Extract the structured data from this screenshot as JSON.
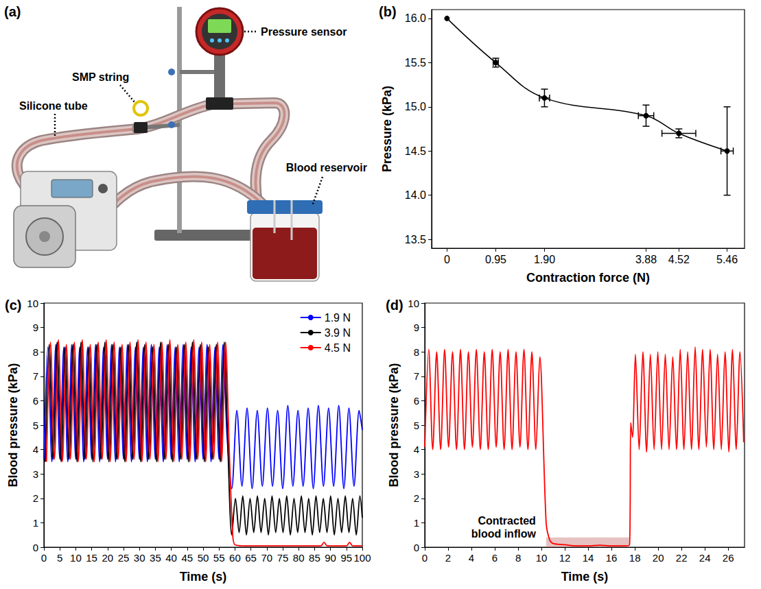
{
  "diagram": {
    "panel": "(a)",
    "labels": {
      "smp_string": "SMP string",
      "pressure_sensor": "Pressure sensor",
      "silicone_tube": "Silicone tube",
      "blood_reservoir": "Blood reservoir"
    }
  },
  "chart_data": [
    {
      "panel": "(b)",
      "type": "line",
      "x_label": "Contraction force (N)",
      "y_label": "Pressure (kPa)",
      "x": [
        0,
        0.95,
        1.9,
        3.88,
        4.52,
        5.46
      ],
      "values": [
        16.0,
        15.5,
        15.1,
        14.9,
        14.7,
        14.5
      ],
      "x_error": [
        0,
        0.05,
        0.1,
        0.15,
        0.33,
        0.12
      ],
      "y_error": [
        0,
        0.05,
        0.1,
        0.12,
        0.05,
        0.5
      ],
      "color": "#000000",
      "marker": "circle",
      "line_style": "solid",
      "xlim": [
        -0.3,
        5.8
      ],
      "xticks": [
        0,
        0.95,
        {
          "value": 1.9,
          "label": "1.90"
        },
        3.88,
        4.52,
        5.46
      ],
      "ylim": [
        13.4,
        16.1
      ],
      "yticks": [
        13.5,
        {
          "value": 14,
          "label": "14.0"
        },
        14.5,
        {
          "value": 15,
          "label": "15.0"
        },
        15.5,
        {
          "value": 16,
          "label": "16.0"
        }
      ],
      "grid": false
    },
    {
      "panel": "(c)",
      "type": "line",
      "x_label": "Time (s)",
      "y_label": "Blood pressure (kPa)",
      "xlim": [
        0,
        100
      ],
      "xticks": [
        0,
        5,
        10,
        15,
        20,
        25,
        30,
        35,
        40,
        45,
        50,
        55,
        60,
        65,
        70,
        75,
        80,
        85,
        90,
        95,
        100
      ],
      "ylim": [
        0,
        10
      ],
      "yticks": [
        0,
        1,
        2,
        3,
        4,
        5,
        6,
        7,
        8,
        9,
        10
      ],
      "grid": false,
      "legend": "upper right",
      "series": [
        {
          "name": "1.9 N",
          "color": "#0000ff",
          "line_style": "solid",
          "x": [
            0,
            1.25,
            2.5,
            3.75,
            5,
            6.25,
            7.5,
            8.75,
            10,
            11.25,
            12.5,
            13.75,
            15,
            16.25,
            17.5,
            18.75,
            20,
            21.25,
            22.5,
            23.75,
            25,
            26.25,
            27.5,
            28.75,
            30,
            31.25,
            32.5,
            33.75,
            35,
            36.25,
            37.5,
            38.75,
            40,
            41.25,
            42.5,
            43.75,
            45,
            46.25,
            47.5,
            48.75,
            50,
            51.25,
            52.5,
            53.75,
            55,
            56.25,
            57.5,
            59,
            60.6,
            62.2,
            63.8,
            65.4,
            67,
            68.6,
            70.2,
            71.8,
            73.4,
            75,
            76.6,
            78.2,
            79.8,
            81.4,
            83,
            84.6,
            86.2,
            87.8,
            89.4,
            91,
            92.6,
            94.2,
            95.8,
            97.4,
            99,
            100
          ],
          "values": [
            3.6,
            8.2,
            3.5,
            8.3,
            3.6,
            8.2,
            3.5,
            8.3,
            3.6,
            8.2,
            3.5,
            8.2,
            3.6,
            8.3,
            3.5,
            8.2,
            3.6,
            8.3,
            3.5,
            8.2,
            3.6,
            8.3,
            3.5,
            8.2,
            3.6,
            8.2,
            3.5,
            8.3,
            3.6,
            8.2,
            3.5,
            8.3,
            3.6,
            8.2,
            3.5,
            8.3,
            3.6,
            8.2,
            3.5,
            8.2,
            3.6,
            8.3,
            3.5,
            8.2,
            3.6,
            8.3,
            4.6,
            2.4,
            5.6,
            2.5,
            5.7,
            2.4,
            5.6,
            2.5,
            5.7,
            2.5,
            5.6,
            2.4,
            5.8,
            2.5,
            5.6,
            2.5,
            5.7,
            2.4,
            5.8,
            2.5,
            5.7,
            2.5,
            5.8,
            2.4,
            5.7,
            2.5,
            5.6,
            4.8
          ]
        },
        {
          "name": "3.9 N",
          "color": "#000000",
          "line_style": "solid",
          "x": [
            0.4,
            1.65,
            2.9,
            4.15,
            5.4,
            6.65,
            7.9,
            9.15,
            10.4,
            11.65,
            12.9,
            14.15,
            15.4,
            16.65,
            17.9,
            19.15,
            20.4,
            21.65,
            22.9,
            24.15,
            25.4,
            26.65,
            27.9,
            29.15,
            30.4,
            31.65,
            32.9,
            34.15,
            35.4,
            36.65,
            37.9,
            39.15,
            40.4,
            41.65,
            42.9,
            44.15,
            45.4,
            46.65,
            47.9,
            49.15,
            50.4,
            51.65,
            52.9,
            54.15,
            55.4,
            56.65,
            57.8,
            59,
            60.15,
            61.3,
            62.45,
            63.6,
            64.75,
            65.9,
            67.05,
            68.2,
            69.35,
            70.5,
            71.65,
            72.8,
            73.95,
            75.1,
            76.25,
            77.4,
            78.55,
            79.7,
            80.85,
            82,
            83.15,
            84.3,
            85.45,
            86.6,
            87.75,
            88.9,
            90.05,
            91.2,
            92.35,
            93.5,
            94.65,
            95.8,
            96.95,
            98.1,
            99.25,
            100
          ],
          "values": [
            3.5,
            8.3,
            3.6,
            8.4,
            3.5,
            8.2,
            3.6,
            8.3,
            3.5,
            8.4,
            3.6,
            8.2,
            3.5,
            8.3,
            3.6,
            8.4,
            3.5,
            8.3,
            3.6,
            8.2,
            3.5,
            8.3,
            3.6,
            8.4,
            3.5,
            8.3,
            3.6,
            8.2,
            3.5,
            8.4,
            3.6,
            8.3,
            3.5,
            8.2,
            3.6,
            8.3,
            3.5,
            8.4,
            3.6,
            8.3,
            3.5,
            8.2,
            3.6,
            8.3,
            3.5,
            8.4,
            4.0,
            0.5,
            2.0,
            0.6,
            2.1,
            0.5,
            2.0,
            0.6,
            2.1,
            0.6,
            2.0,
            0.5,
            2.1,
            0.6,
            2.0,
            0.6,
            2.1,
            0.5,
            2.0,
            0.6,
            2.1,
            0.6,
            2.0,
            0.5,
            2.1,
            0.6,
            2.0,
            0.6,
            2.1,
            0.5,
            2.0,
            0.6,
            2.1,
            0.6,
            2.0,
            0.5,
            2.1,
            1.2
          ]
        },
        {
          "name": "4.5 N",
          "color": "#ff0000",
          "line_style": "solid",
          "x": [
            0.8,
            2.05,
            3.3,
            4.55,
            5.8,
            7.05,
            8.3,
            9.55,
            10.8,
            12.05,
            13.3,
            14.55,
            15.8,
            17.05,
            18.3,
            19.55,
            20.8,
            22.05,
            23.3,
            24.55,
            25.8,
            27.05,
            28.3,
            29.55,
            30.8,
            32.05,
            33.3,
            34.55,
            35.8,
            37.05,
            38.3,
            39.55,
            40.8,
            42.05,
            43.3,
            44.55,
            45.8,
            47.05,
            48.3,
            49.55,
            50.8,
            52.05,
            53.3,
            54.55,
            55.8,
            57.05,
            58.2,
            59.2,
            60,
            65,
            75,
            85,
            87,
            88,
            89,
            95,
            96,
            97,
            100
          ],
          "values": [
            3.5,
            8.4,
            3.6,
            8.5,
            3.5,
            8.3,
            3.6,
            8.4,
            3.5,
            8.5,
            3.6,
            8.3,
            3.5,
            8.4,
            3.6,
            8.5,
            3.5,
            8.4,
            3.6,
            8.3,
            3.5,
            8.4,
            3.6,
            8.5,
            3.5,
            8.4,
            3.6,
            8.3,
            3.5,
            8.4,
            3.6,
            8.5,
            3.5,
            8.3,
            3.6,
            8.4,
            3.5,
            8.5,
            3.6,
            8.4,
            3.5,
            8.3,
            3.6,
            8.4,
            3.5,
            8.4,
            4.0,
            0.8,
            0.1,
            0.05,
            0.05,
            0.05,
            0.05,
            0.2,
            0.05,
            0.05,
            0.2,
            0.05,
            0.05
          ]
        }
      ]
    },
    {
      "panel": "(d)",
      "type": "line",
      "x_label": "Time (s)",
      "y_label": "Blood pressure (kPa)",
      "color": "#ff0000",
      "line_style": "solid",
      "x": [
        0,
        0.34,
        0.68,
        1.02,
        1.36,
        1.7,
        2.04,
        2.38,
        2.72,
        3.06,
        3.4,
        3.74,
        4.08,
        4.42,
        4.76,
        5.1,
        5.44,
        5.78,
        6.12,
        6.46,
        6.8,
        7.14,
        7.48,
        7.82,
        8.16,
        8.5,
        8.84,
        9.18,
        9.52,
        9.86,
        10.4,
        10.7,
        11,
        12,
        13,
        14,
        15,
        16,
        17,
        17.55,
        17.65,
        17.8,
        18.05,
        18.37,
        18.69,
        19.01,
        19.33,
        19.65,
        19.97,
        20.29,
        20.61,
        20.93,
        21.25,
        21.57,
        21.89,
        22.21,
        22.53,
        22.85,
        23.17,
        23.49,
        23.81,
        24.13,
        24.45,
        24.77,
        25.09,
        25.41,
        25.73,
        26.05,
        26.37,
        26.69,
        27.01,
        27.33
      ],
      "values": [
        4.1,
        8.1,
        4.0,
        8.0,
        4.0,
        8.1,
        4.1,
        8.0,
        4.0,
        8.1,
        4.0,
        8.0,
        4.1,
        8.1,
        4.0,
        8.0,
        4.0,
        8.1,
        4.1,
        8.0,
        4.0,
        8.1,
        4.0,
        8.0,
        4.1,
        8.1,
        4.0,
        8.0,
        4.0,
        7.8,
        1.0,
        0.3,
        0.15,
        0.1,
        0.05,
        0.05,
        0.08,
        0.05,
        0.05,
        0.1,
        5.1,
        4.5,
        7.9,
        4.0,
        8.0,
        3.9,
        7.9,
        4.0,
        8.0,
        4.0,
        7.9,
        4.0,
        7.8,
        4.0,
        8.1,
        4.0,
        8.0,
        4.0,
        8.2,
        4.0,
        8.1,
        4.1,
        8.1,
        4.0,
        7.9,
        4.0,
        8.0,
        3.9,
        8.1,
        4.0,
        8.0,
        4.3
      ],
      "annotation": {
        "text": "Contracted blood inflow",
        "xrange": [
          10.4,
          17.5
        ],
        "yrange": [
          0,
          0.4
        ]
      },
      "xlim": [
        0,
        27.4
      ],
      "xticks": [
        0,
        2,
        4,
        6,
        8,
        10,
        12,
        14,
        16,
        18,
        20,
        22,
        24,
        26
      ],
      "ylim": [
        0,
        10
      ],
      "yticks": [
        0,
        1,
        2,
        3,
        4,
        5,
        6,
        7,
        8,
        9,
        10
      ],
      "grid": false
    }
  ]
}
